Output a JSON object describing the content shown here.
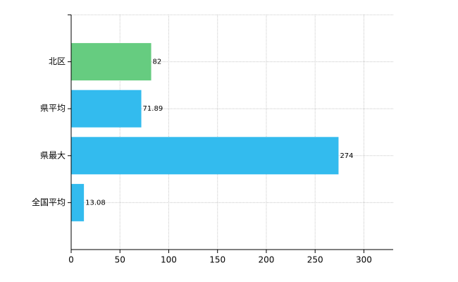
{
  "chart_data": {
    "type": "bar",
    "orientation": "horizontal",
    "categories": [
      "北区",
      "県平均",
      "県最大",
      "全国平均"
    ],
    "values": [
      82,
      71.89,
      274,
      13.08
    ],
    "colors": [
      "#66cc80",
      "#33bbee",
      "#33bbee",
      "#33bbee"
    ],
    "xlim": [
      0,
      330
    ],
    "xticks": [
      0,
      50,
      100,
      150,
      200,
      250,
      300
    ],
    "grid": true
  }
}
